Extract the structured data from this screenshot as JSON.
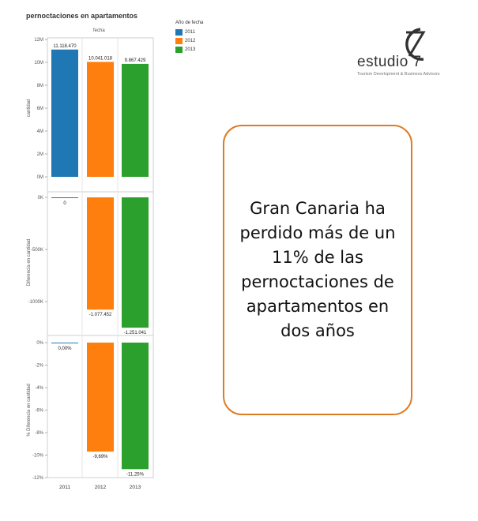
{
  "chart_data": {
    "type": "bar",
    "title": "pernoctaciones en apartamentos",
    "column_header": "fecha",
    "categories": [
      "2011",
      "2012",
      "2013"
    ],
    "legend": {
      "title": "Año de fecha",
      "entries": [
        {
          "label": "2011",
          "color": "#1f77b4"
        },
        {
          "label": "2012",
          "color": "#ff7f0e"
        },
        {
          "label": "2013",
          "color": "#2ca02c"
        }
      ]
    },
    "panels": [
      {
        "ylabel": "cantidad",
        "values": [
          11118470,
          10041018,
          9867429
        ],
        "labels": [
          "11.118.470",
          "10.041.018",
          "9.867.429"
        ],
        "ylim": [
          0,
          12000000
        ],
        "ticks": [
          {
            "v": 12000000,
            "t": "12M"
          },
          {
            "v": 10000000,
            "t": "10M"
          },
          {
            "v": 8000000,
            "t": "8M"
          },
          {
            "v": 6000000,
            "t": "6M"
          },
          {
            "v": 4000000,
            "t": "4M"
          },
          {
            "v": 2000000,
            "t": "2M"
          },
          {
            "v": 0,
            "t": "0M"
          }
        ]
      },
      {
        "ylabel": "Diferencia en cantidad",
        "values": [
          0,
          -1077452,
          -1251041
        ],
        "labels": [
          "0",
          "-1.077.452",
          "-1.251.041"
        ],
        "ylim": [
          -1250000,
          0
        ],
        "ticks": [
          {
            "v": 0,
            "t": "0K"
          },
          {
            "v": -500000,
            "t": "-500K"
          },
          {
            "v": -1000000,
            "t": "-1000K"
          }
        ]
      },
      {
        "ylabel": "% Diferencia en cantidad",
        "values": [
          0,
          -9.69,
          -11.25
        ],
        "labels": [
          "0,00%",
          "-9,69%",
          "-11,25%"
        ],
        "ylim": [
          -12,
          0
        ],
        "ticks": [
          {
            "v": 0,
            "t": "0%"
          },
          {
            "v": -2,
            "t": "-2%"
          },
          {
            "v": -4,
            "t": "-4%"
          },
          {
            "v": -6,
            "t": "-6%"
          },
          {
            "v": -8,
            "t": "-8%"
          },
          {
            "v": -10,
            "t": "-10%"
          },
          {
            "v": -12,
            "t": "-12%"
          }
        ]
      }
    ]
  },
  "logo": {
    "name": "estudio 7",
    "tagline": "Tourism Development & Business Advisors"
  },
  "callout": {
    "text": "Gran Canaria ha perdido más de un 11% de las pernoctaciones de apartamentos en dos años",
    "border_color": "#e07b25"
  }
}
